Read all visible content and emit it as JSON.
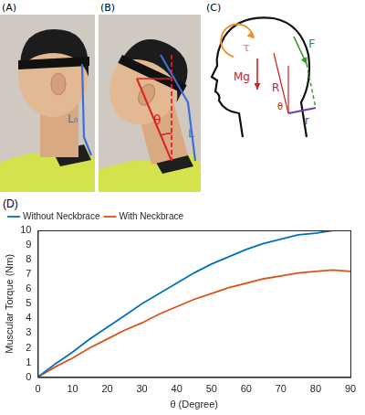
{
  "panels": {
    "A": {
      "label": "(A)",
      "annotations": [
        "L₀"
      ]
    },
    "B": {
      "label": "(B)",
      "annotations": [
        "θ",
        "L"
      ]
    },
    "C": {
      "label": "(C)",
      "annotations": [
        "τ",
        "F",
        "Mg",
        "R",
        "θ",
        "r"
      ]
    },
    "D": {
      "label": "(D)"
    }
  },
  "chart_data": {
    "type": "line",
    "xlabel": "θ (Degree)",
    "ylabel": "Muscular Torque (Nm)",
    "x": [
      0,
      5,
      10,
      15,
      20,
      25,
      30,
      35,
      40,
      45,
      50,
      55,
      60,
      65,
      70,
      75,
      80,
      85,
      90
    ],
    "series": [
      {
        "name": "Without Neckbrace",
        "color": "#0072bd",
        "values": [
          0,
          0.9,
          1.7,
          2.6,
          3.4,
          4.2,
          5.0,
          5.7,
          6.4,
          7.1,
          7.7,
          8.2,
          8.7,
          9.1,
          9.4,
          9.7,
          9.8,
          10.0,
          10.0
        ]
      },
      {
        "name": "With Neckbrace",
        "color": "#d95319",
        "values": [
          0,
          0.7,
          1.3,
          2.0,
          2.6,
          3.2,
          3.7,
          4.3,
          4.8,
          5.3,
          5.7,
          6.1,
          6.4,
          6.7,
          6.9,
          7.1,
          7.2,
          7.3,
          7.2
        ]
      }
    ],
    "xlim": [
      0,
      90
    ],
    "ylim": [
      0,
      10
    ],
    "xticks": [
      0,
      10,
      20,
      30,
      40,
      50,
      60,
      70,
      80,
      90
    ],
    "yticks": [
      0,
      1,
      2,
      3,
      4,
      5,
      6,
      7,
      8,
      9,
      10
    ],
    "grid": false,
    "legend": "top-left"
  }
}
